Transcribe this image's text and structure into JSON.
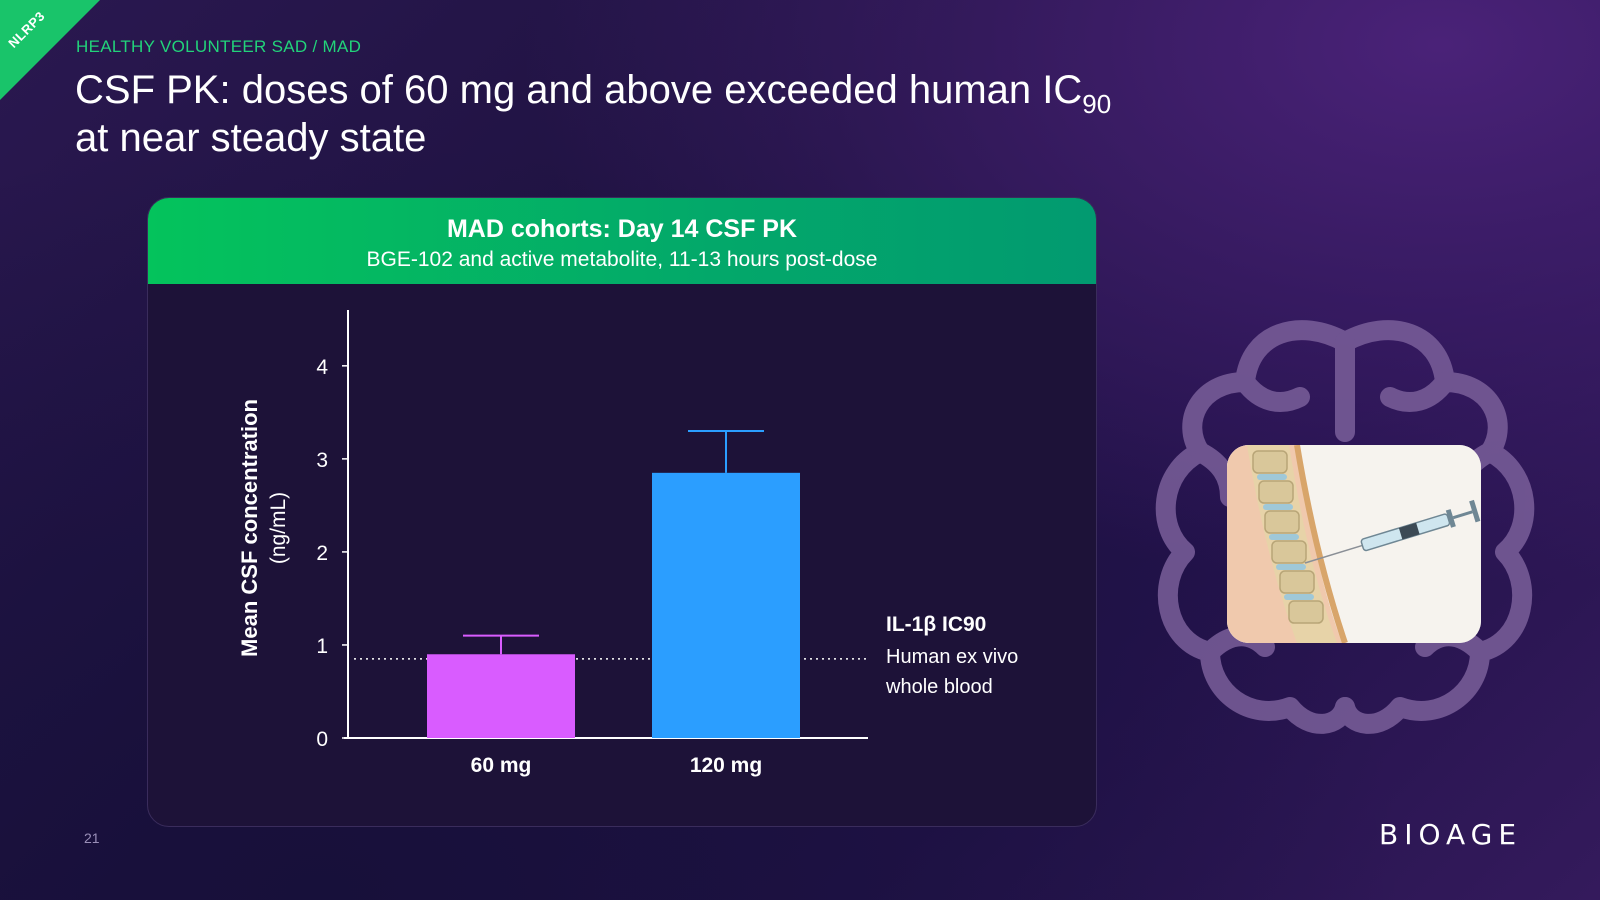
{
  "header": {
    "corner_tag": "NLRP3",
    "eyebrow": "HEALTHY VOLUNTEER SAD / MAD",
    "title_line1_pre": "CSF PK: doses of 60 mg and above exceeded human IC",
    "title_sub": "90",
    "title_line2": "at near steady state"
  },
  "panel": {
    "title": "MAD cohorts: Day 14 CSF PK",
    "subtitle": "BGE-102 and active metabolite, 11-13 hours post-dose"
  },
  "chart_data": {
    "type": "bar",
    "categories": [
      "60 mg",
      "120 mg"
    ],
    "values": [
      0.9,
      2.85
    ],
    "error_upper": [
      1.1,
      3.3
    ],
    "bar_colors": [
      "#d95cff",
      "#2b9eff"
    ],
    "ylabel": "Mean CSF concentration",
    "ylabel_unit": "(ng/mL)",
    "ylim": [
      0,
      4.6
    ],
    "yticks": [
      0,
      1,
      2,
      3,
      4
    ],
    "reference_line": {
      "value": 0.85,
      "label": "IL-1β IC90",
      "note_line1": "Human ex vivo",
      "note_line2": "whole blood"
    },
    "grid": false
  },
  "footer": {
    "page_number": "21",
    "logo": "BIOAGE"
  },
  "illustration": {
    "brain_icon": "brain-outline-icon",
    "photo": "spine-injection-illustration"
  }
}
